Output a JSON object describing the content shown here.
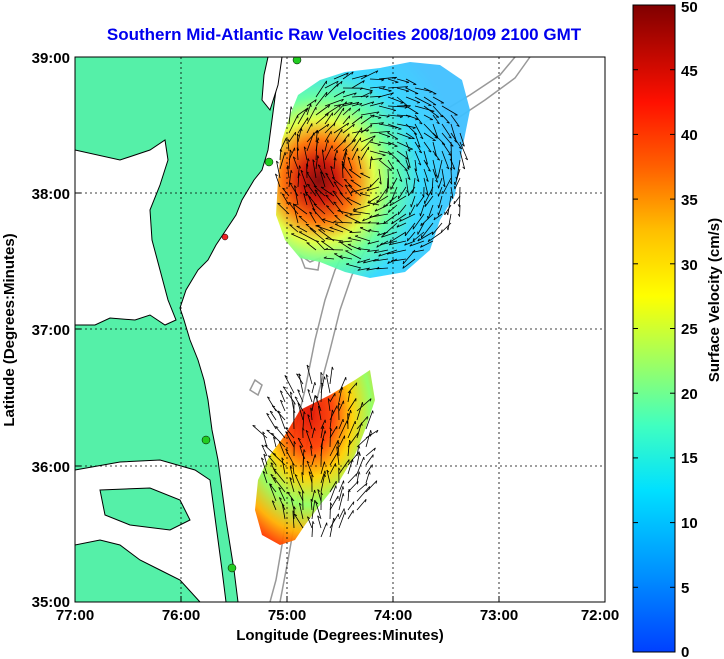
{
  "title": "Southern Mid-Atlantic Raw Velocities 2008/10/09 2100 GMT",
  "xlabel": "Longitude (Degrees:Minutes)",
  "ylabel": "Latitude (Degrees:Minutes)",
  "colorbar_label": "Surface Velocity (cm/s)",
  "x_ticks": [
    "77:00",
    "76:00",
    "75:00",
    "74:00",
    "73:00",
    "72:00"
  ],
  "y_ticks": [
    "39:00",
    "38:00",
    "37:00",
    "36:00",
    "35:00"
  ],
  "colorbar_ticks": [
    "0",
    "5",
    "10",
    "15",
    "20",
    "25",
    "30",
    "35",
    "40",
    "45",
    "50"
  ],
  "colors": {
    "land": "#55f0a8",
    "ocean": "#ffffff",
    "coastline": "#000000",
    "bathymetry": "#999999",
    "station": "#22cc22",
    "station_alt": "#ee2222",
    "title": "#0000ee"
  },
  "map": {
    "lon_range": [
      -77,
      -72
    ],
    "lat_range": [
      35,
      39
    ],
    "colormap": "jet",
    "velocity_range": [
      0,
      50
    ],
    "units": "cm/s",
    "grid": "dotted"
  }
}
